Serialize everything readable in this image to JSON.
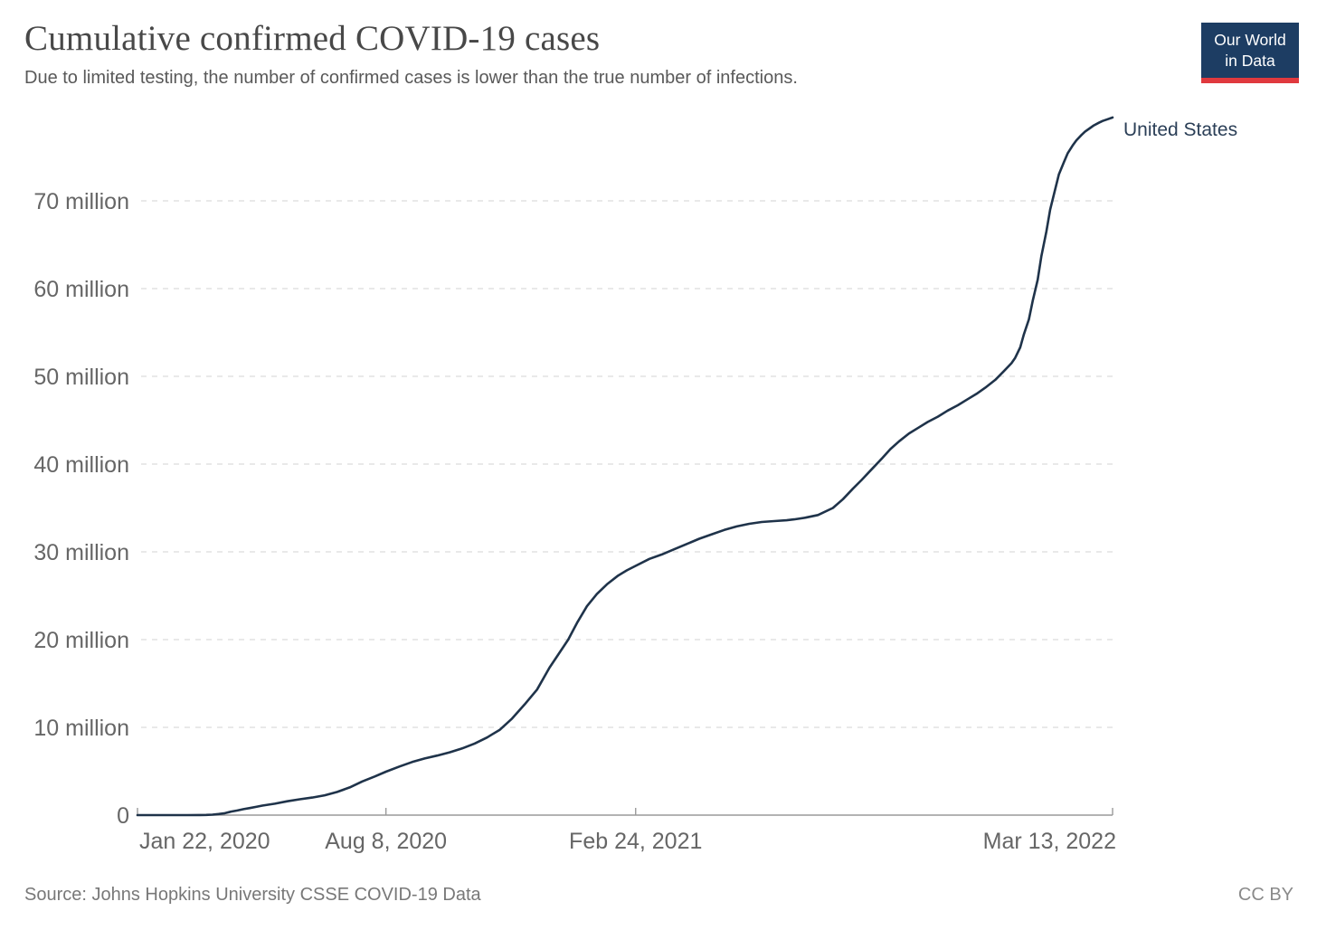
{
  "header": {
    "title": "Cumulative confirmed COVID-19 cases",
    "subtitle": "Due to limited testing, the number of confirmed cases is lower than the true number of infections."
  },
  "logo": {
    "line1": "Our World",
    "line2": "in Data",
    "bg_color": "#1d3d63",
    "stripe_color": "#e0393e"
  },
  "footer": {
    "source": "Source: Johns Hopkins University CSSE COVID-19 Data",
    "license": "CC BY"
  },
  "colors": {
    "series_line": "#1f334a",
    "series_label": "#2b3f57",
    "axis_text": "#666666",
    "gridline": "#dcdcdc",
    "axis_line": "#9a9a9a"
  },
  "chart_data": {
    "type": "line",
    "title": "Cumulative confirmed COVID-19 cases",
    "xlabel": "",
    "ylabel": "",
    "grid": "horizontal-dashed",
    "legend_position": "end-of-line-label",
    "x_unit": "days since Jan 22, 2020",
    "y_unit": "million cases",
    "x_range_days": [
      0,
      781
    ],
    "ylim_million": [
      0,
      79.5
    ],
    "x_ticks": [
      {
        "day": 0,
        "label": "Jan 22, 2020",
        "anchor": "start"
      },
      {
        "day": 199,
        "label": "Aug 8, 2020",
        "anchor": "middle"
      },
      {
        "day": 399,
        "label": "Feb 24, 2021",
        "anchor": "middle"
      },
      {
        "day": 781,
        "label": "Mar 13, 2022",
        "anchor": "end"
      }
    ],
    "y_ticks": [
      {
        "value": 0,
        "label": "0"
      },
      {
        "value": 10,
        "label": "10 million"
      },
      {
        "value": 20,
        "label": "20 million"
      },
      {
        "value": 30,
        "label": "30 million"
      },
      {
        "value": 40,
        "label": "40 million"
      },
      {
        "value": 50,
        "label": "50 million"
      },
      {
        "value": 60,
        "label": "60 million"
      },
      {
        "value": 70,
        "label": "70 million"
      }
    ],
    "series": [
      {
        "name": "United States",
        "color": "#1f334a",
        "points_day_millions": [
          [
            0,
            0.0
          ],
          [
            10,
            0.0
          ],
          [
            20,
            0.0
          ],
          [
            30,
            0.0
          ],
          [
            40,
            0.0
          ],
          [
            50,
            0.01
          ],
          [
            55,
            0.02
          ],
          [
            60,
            0.05
          ],
          [
            65,
            0.12
          ],
          [
            70,
            0.22
          ],
          [
            75,
            0.4
          ],
          [
            80,
            0.53
          ],
          [
            85,
            0.68
          ],
          [
            90,
            0.8
          ],
          [
            95,
            0.94
          ],
          [
            100,
            1.08
          ],
          [
            110,
            1.3
          ],
          [
            120,
            1.58
          ],
          [
            130,
            1.8
          ],
          [
            140,
            2.0
          ],
          [
            150,
            2.26
          ],
          [
            160,
            2.64
          ],
          [
            170,
            3.15
          ],
          [
            180,
            3.83
          ],
          [
            190,
            4.4
          ],
          [
            199,
            4.95
          ],
          [
            210,
            5.55
          ],
          [
            220,
            6.05
          ],
          [
            230,
            6.45
          ],
          [
            240,
            6.78
          ],
          [
            250,
            7.15
          ],
          [
            260,
            7.6
          ],
          [
            270,
            8.15
          ],
          [
            280,
            8.85
          ],
          [
            284,
            9.2
          ],
          [
            290,
            9.7
          ],
          [
            300,
            11.0
          ],
          [
            310,
            12.6
          ],
          [
            320,
            14.3
          ],
          [
            330,
            16.8
          ],
          [
            337,
            18.3
          ],
          [
            345,
            20.0
          ],
          [
            352,
            21.9
          ],
          [
            360,
            23.8
          ],
          [
            368,
            25.2
          ],
          [
            376,
            26.3
          ],
          [
            385,
            27.3
          ],
          [
            392,
            27.9
          ],
          [
            399,
            28.4
          ],
          [
            410,
            29.2
          ],
          [
            420,
            29.7
          ],
          [
            430,
            30.3
          ],
          [
            440,
            30.9
          ],
          [
            450,
            31.5
          ],
          [
            460,
            32.0
          ],
          [
            470,
            32.5
          ],
          [
            480,
            32.9
          ],
          [
            490,
            33.2
          ],
          [
            500,
            33.4
          ],
          [
            510,
            33.5
          ],
          [
            520,
            33.6
          ],
          [
            526,
            33.7
          ],
          [
            535,
            33.9
          ],
          [
            545,
            34.2
          ],
          [
            557,
            35.0
          ],
          [
            565,
            36.0
          ],
          [
            573,
            37.2
          ],
          [
            580,
            38.2
          ],
          [
            588,
            39.4
          ],
          [
            596,
            40.6
          ],
          [
            603,
            41.7
          ],
          [
            610,
            42.6
          ],
          [
            618,
            43.5
          ],
          [
            626,
            44.2
          ],
          [
            633,
            44.8
          ],
          [
            641,
            45.4
          ],
          [
            649,
            46.1
          ],
          [
            657,
            46.7
          ],
          [
            665,
            47.4
          ],
          [
            672,
            48.0
          ],
          [
            679,
            48.7
          ],
          [
            687,
            49.6
          ],
          [
            694,
            50.6
          ],
          [
            700,
            51.5
          ],
          [
            703,
            52.1
          ],
          [
            707,
            53.3
          ],
          [
            710,
            54.8
          ],
          [
            714,
            56.5
          ],
          [
            717,
            58.6
          ],
          [
            721,
            61.0
          ],
          [
            724,
            63.7
          ],
          [
            728,
            66.5
          ],
          [
            731,
            69.0
          ],
          [
            735,
            71.3
          ],
          [
            738,
            73.0
          ],
          [
            742,
            74.4
          ],
          [
            745,
            75.4
          ],
          [
            749,
            76.3
          ],
          [
            752,
            76.9
          ],
          [
            756,
            77.5
          ],
          [
            759,
            77.9
          ],
          [
            763,
            78.3
          ],
          [
            766,
            78.6
          ],
          [
            770,
            78.9
          ],
          [
            773,
            79.1
          ],
          [
            777,
            79.3
          ],
          [
            781,
            79.5
          ]
        ]
      }
    ]
  }
}
